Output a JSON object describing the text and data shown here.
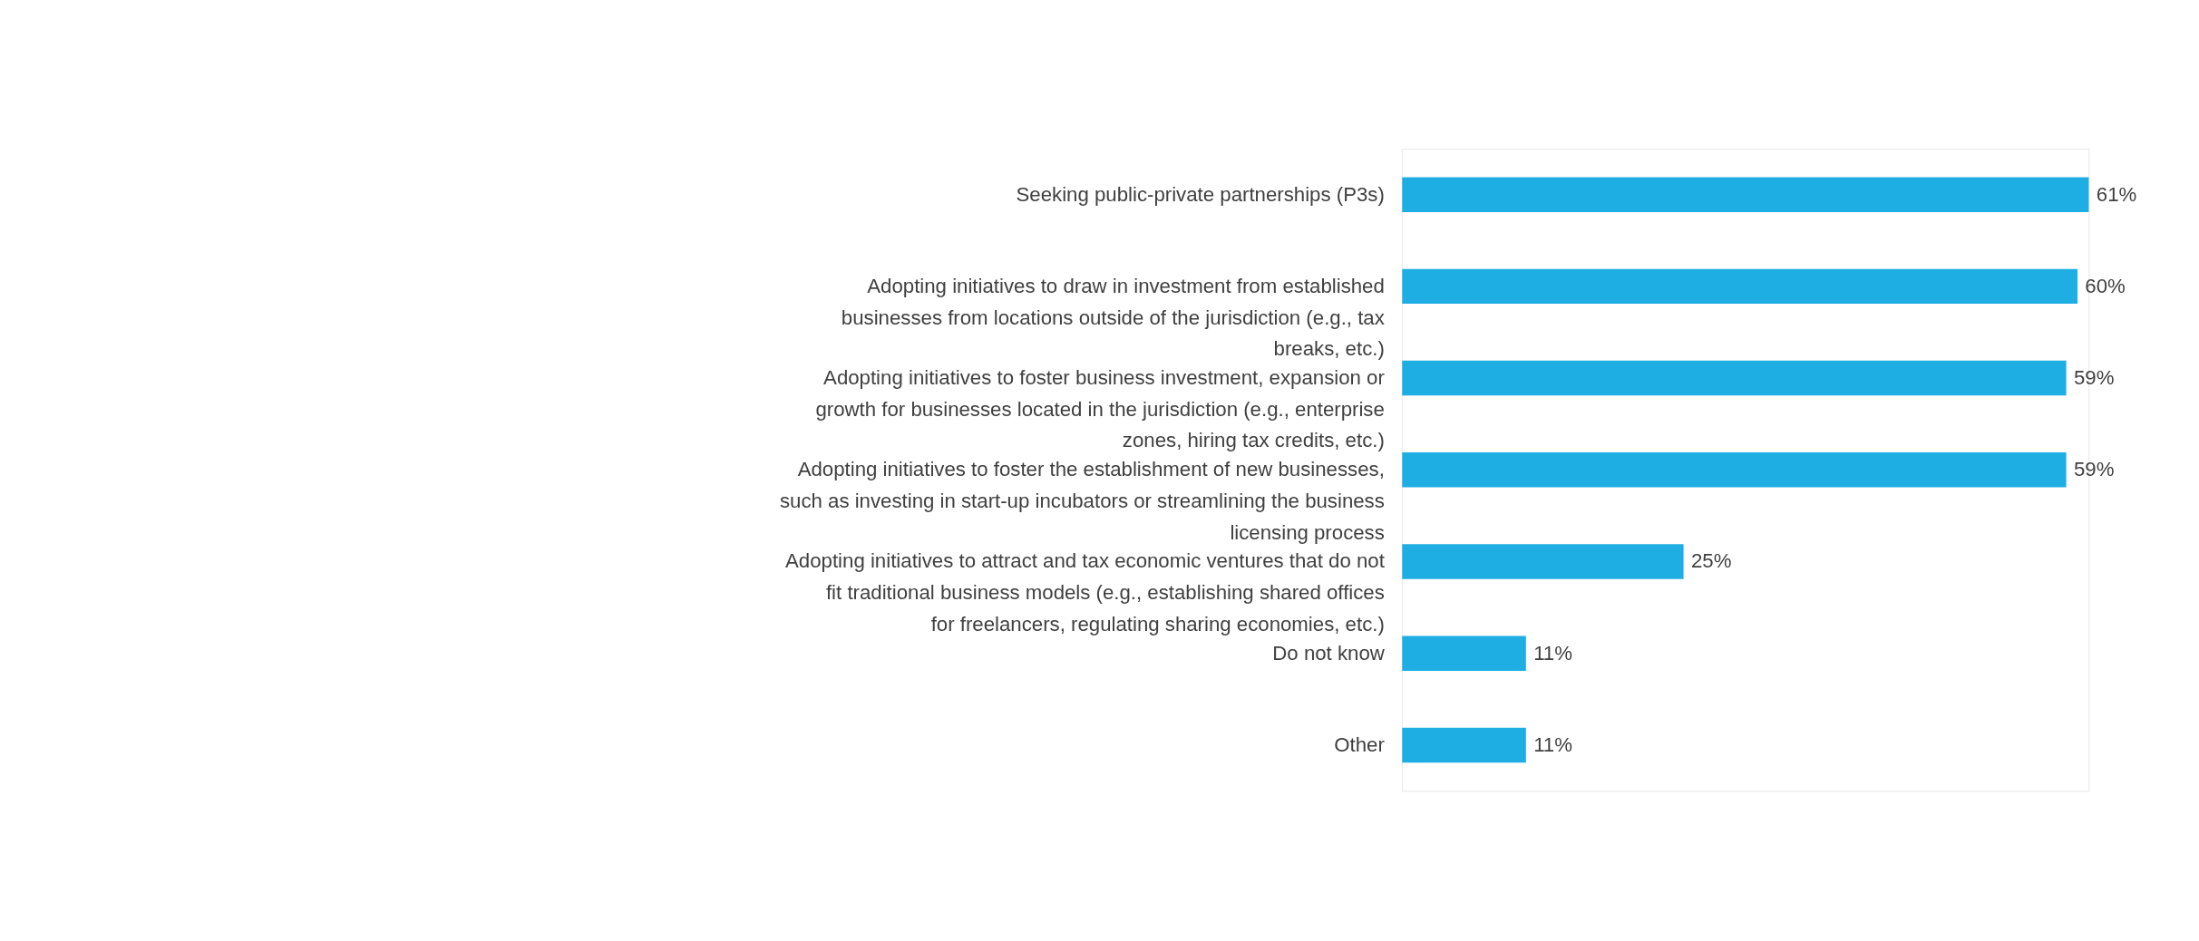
{
  "chart_data": {
    "type": "bar",
    "orientation": "horizontal",
    "color": "#1eaee4",
    "categories": [
      "Seeking public-private partnerships (P3s)",
      "Adopting initiatives to draw in investment from established businesses from locations outside of the jurisdiction (e.g., tax breaks, etc.)",
      "Adopting initiatives to foster business investment, expansion or growth for businesses located in the jurisdiction (e.g., enterprise zones, hiring tax credits, etc.)",
      "Adopting initiatives to foster the establishment of new businesses, such as investing in start-up incubators or streamlining the business licensing process",
      "Adopting initiatives to attract and tax economic ventures that do not fit traditional business models (e.g., establishing shared offices for freelancers, regulating sharing economies, etc.)",
      "Do not know",
      "Other"
    ],
    "values": [
      61,
      60,
      59,
      59,
      25,
      11,
      11
    ],
    "value_labels": [
      "61%",
      "60%",
      "59%",
      "59%",
      "25%",
      "11%",
      "11%"
    ]
  }
}
